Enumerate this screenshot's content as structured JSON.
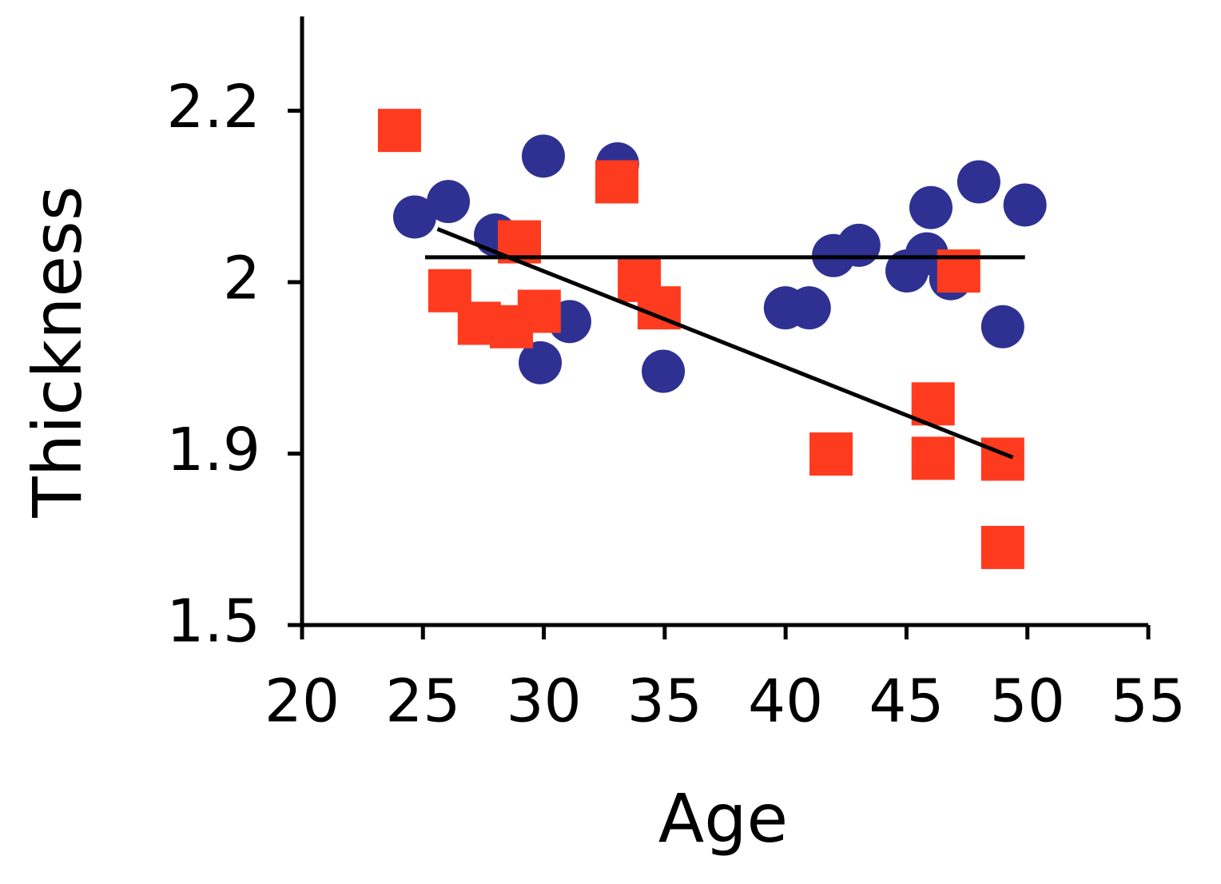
{
  "chart_data": {
    "type": "scatter",
    "xlabel": "Age",
    "ylabel": "Thickness",
    "xlim": [
      20,
      55
    ],
    "xticks": [
      20,
      25,
      30,
      35,
      40,
      45,
      50,
      55
    ],
    "ylim": [
      1.5,
      2.31
    ],
    "yticks": [
      1.5,
      1.9,
      2,
      2.2
    ],
    "series": [
      {
        "color": "#2e3192",
        "marker": "circle",
        "x": [
          24.66,
          26.05,
          28.0,
          29.98,
          33.05,
          31.07,
          29.85,
          34.94,
          39.99,
          40.98,
          41.98,
          43.03,
          45.02,
          46.01,
          45.84,
          46.83,
          47.99,
          49.9,
          48.98
        ],
        "values": [
          2.076,
          2.094,
          2.055,
          2.147,
          2.138,
          1.977,
          1.953,
          1.948,
          1.985,
          1.985,
          2.031,
          2.043,
          2.013,
          2.087,
          2.033,
          2.004,
          2.117,
          2.09,
          1.974
        ]
      },
      {
        "color": "#ff3b1f",
        "marker": "square",
        "x": [
          24.03,
          33.02,
          28.99,
          26.11,
          27.33,
          28.66,
          29.81,
          33.95,
          34.77,
          41.88,
          46.1,
          46.1,
          48.98,
          48.98,
          47.16
        ],
        "values": [
          2.177,
          2.117,
          2.047,
          1.995,
          1.976,
          1.974,
          1.983,
          2.002,
          1.985,
          1.899,
          1.929,
          1.889,
          1.887,
          1.681,
          2.013
        ]
      }
    ],
    "lines": [
      {
        "color": "#000000",
        "x": [
          25.09,
          49.9
        ],
        "values": [
          2.029,
          2.029
        ]
      },
      {
        "color": "#000000",
        "x": [
          25.6,
          49.4
        ],
        "values": [
          2.062,
          1.891
        ]
      }
    ]
  }
}
